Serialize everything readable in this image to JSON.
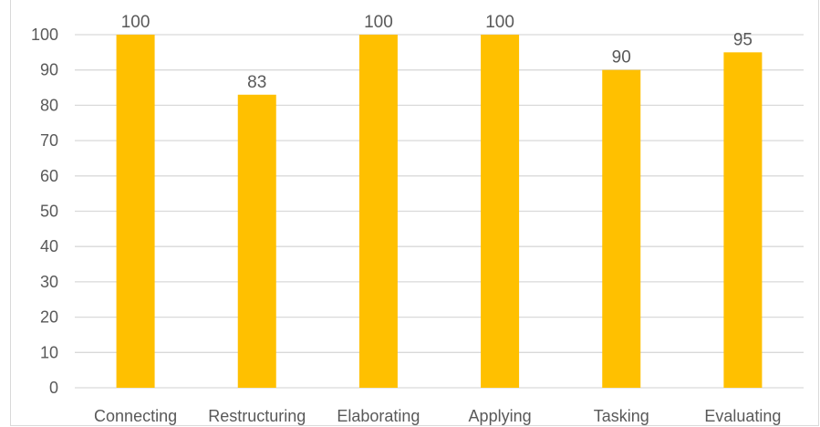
{
  "chart_data": {
    "type": "bar",
    "categories": [
      "Connecting",
      "Restructuring",
      "Elaborating",
      "Applying",
      "Tasking",
      "Evaluating"
    ],
    "values": [
      100,
      83,
      100,
      100,
      90,
      95
    ],
    "data_labels": [
      "100",
      "83",
      "100",
      "100",
      "90",
      "95"
    ],
    "title": "",
    "xlabel": "",
    "ylabel": "",
    "ylim": [
      0,
      100
    ],
    "yticks": [
      0,
      10,
      20,
      30,
      40,
      50,
      60,
      70,
      80,
      90,
      100
    ],
    "grid": true,
    "legend": "none",
    "bar_color": "#FFC000",
    "gridline_color": "#d9d9d9",
    "text_color": "#595959"
  }
}
